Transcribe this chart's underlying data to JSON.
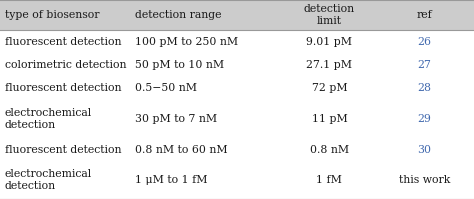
{
  "headers": [
    "type of biosensor",
    "detection range",
    "detection\nlimit",
    "ref"
  ],
  "rows": [
    [
      "fluorescent detection",
      "100 pM to 250 nM",
      "9.01 pM",
      "26"
    ],
    [
      "colorimetric detection",
      "50 pM to 10 nM",
      "27.1 pM",
      "27"
    ],
    [
      "fluorescent detection",
      "0.5−50 nM",
      "72 pM",
      "28"
    ],
    [
      "electrochemical\ndetection",
      "30 pM to 7 nM",
      "11 pM",
      "29"
    ],
    [
      "fluorescent detection",
      "0.8 nM to 60 nM",
      "0.8 nM",
      "30"
    ],
    [
      "electrochemical\ndetection",
      "1 μM to 1 fM",
      "1 fM",
      "this work"
    ]
  ],
  "ref_color": "#4169AE",
  "header_bg": "#CCCCCC",
  "text_color": "#1a1a1a",
  "figsize": [
    4.74,
    1.99
  ],
  "dpi": 100,
  "font_size": 7.8
}
